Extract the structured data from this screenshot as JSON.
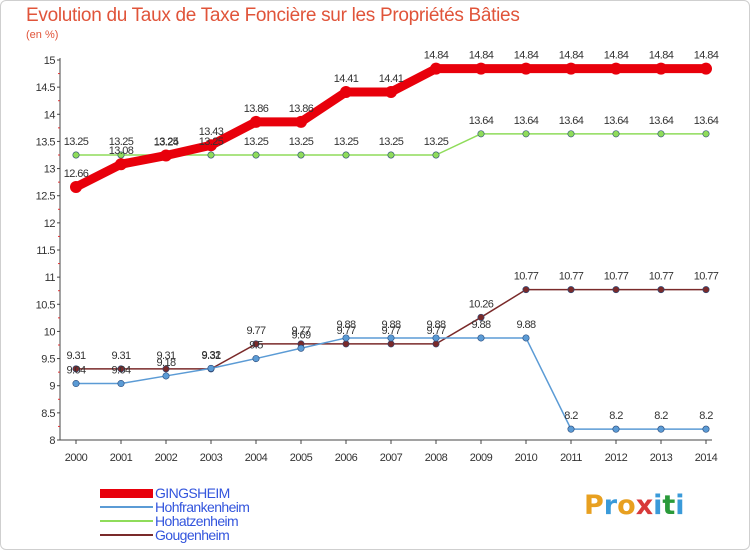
{
  "header": {
    "title": "Evolution du Taux de Taxe Foncière sur les Propriétés Bâties",
    "unit": "(en %)"
  },
  "logo": {
    "text": "Proxiti",
    "colors": [
      "#e8a020",
      "#3a9ad9",
      "#e8a020",
      "#d83a3a",
      "#3a9ad9",
      "#2a9a3a",
      "#3a9ad9"
    ]
  },
  "chart_data": {
    "type": "line",
    "title": "Evolution du Taux de Taxe Foncière sur les Propriétés Bâties",
    "ylabel": "(en %)",
    "xlabel": "",
    "ylim": [
      8,
      15
    ],
    "yticks": [
      "8",
      "8.5",
      "9",
      "9.5",
      "10",
      "10.5",
      "11",
      "11.5",
      "12",
      "12.5",
      "13",
      "13.5",
      "14",
      "14.5",
      "15"
    ],
    "x": [
      "2000",
      "2001",
      "2002",
      "2003",
      "2004",
      "2005",
      "2006",
      "2007",
      "2008",
      "2009",
      "2010",
      "2011",
      "2012",
      "2013",
      "2014"
    ],
    "grid": false,
    "legend_position": "bottom-left",
    "series": [
      {
        "name": "GINGSHEIM",
        "color": "#e8000b",
        "values": [
          12.66,
          13.08,
          13.24,
          13.43,
          13.86,
          13.86,
          14.41,
          14.41,
          14.84,
          14.84,
          14.84,
          14.84,
          14.84,
          14.84,
          14.84
        ]
      },
      {
        "name": "Hohfrankenheim",
        "color": "#5b9bd5",
        "values": [
          9.04,
          9.04,
          9.18,
          9.32,
          9.5,
          9.69,
          9.88,
          9.88,
          9.88,
          9.88,
          9.88,
          8.2,
          8.2,
          8.2,
          8.2
        ]
      },
      {
        "name": "Hohatzenheim",
        "color": "#8fdc5a",
        "values": [
          13.25,
          13.25,
          13.25,
          13.25,
          13.25,
          13.25,
          13.25,
          13.25,
          13.25,
          13.64,
          13.64,
          13.64,
          13.64,
          13.64,
          13.64
        ]
      },
      {
        "name": "Gougenheim",
        "color": "#7a2a2a",
        "values": [
          9.31,
          9.31,
          9.31,
          9.31,
          9.77,
          9.77,
          9.77,
          9.77,
          9.77,
          10.26,
          10.77,
          10.77,
          10.77,
          10.77,
          10.77
        ]
      }
    ]
  }
}
